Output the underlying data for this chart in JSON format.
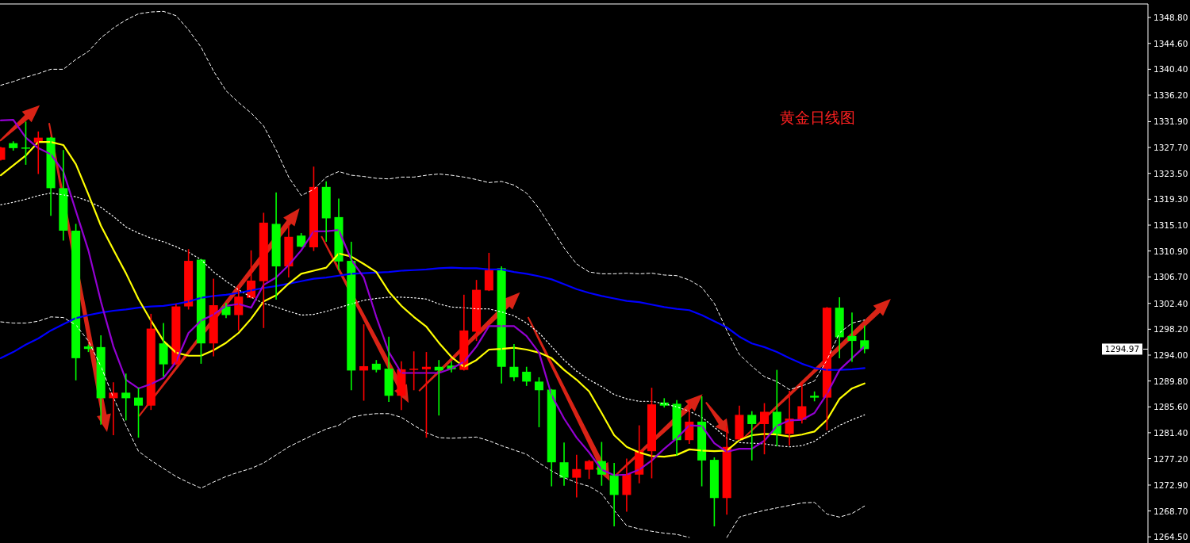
{
  "chart_data": {
    "type": "candlestick",
    "title": "黄金日线图",
    "categories": [
      null,
      null,
      null,
      null,
      null,
      null,
      null,
      null,
      null,
      null,
      null,
      null,
      null,
      null,
      null,
      null,
      null,
      null,
      null,
      null,
      null,
      null,
      null,
      null,
      null,
      null,
      null,
      null,
      null,
      null,
      null,
      null,
      null,
      null,
      null,
      null,
      null,
      null,
      null,
      null,
      null,
      null,
      null,
      null,
      null,
      null,
      null,
      null,
      null,
      null,
      null,
      null,
      null,
      null,
      null,
      null,
      null,
      null,
      null,
      null,
      null,
      null,
      null,
      null,
      null,
      null,
      null,
      null,
      null,
      null
    ],
    "ohlc": [
      [
        1325.7,
        1327.7,
        1325.7,
        1327.7
      ],
      [
        1328.4,
        1328.6,
        1327.3,
        1327.6
      ],
      [
        1327.7,
        1331.8,
        1325.0,
        1327.6
      ],
      [
        1328.5,
        1330.2,
        1323.5,
        1329.3
      ],
      [
        1329.3,
        1329.3,
        1316.7,
        1321.1
      ],
      [
        1321.1,
        1327.2,
        1312.7,
        1314.2
      ],
      [
        1314.2,
        1315.2,
        1290.0,
        1293.5
      ],
      [
        1295.4,
        1295.6,
        1294.6,
        1295.0
      ],
      [
        1295.3,
        1297.1,
        1282.8,
        1287.0
      ],
      [
        1287.0,
        1289.5,
        1281.1,
        1287.9
      ],
      [
        1287.9,
        1290.9,
        1283.5,
        1287.0
      ],
      [
        1287.1,
        1288.6,
        1280.7,
        1285.8
      ],
      [
        1285.8,
        1300.6,
        1285.2,
        1298.3
      ],
      [
        1295.9,
        1299.1,
        1290.6,
        1292.5
      ],
      [
        1292.5,
        1302.2,
        1292.5,
        1301.9
      ],
      [
        1301.9,
        1311.1,
        1301.5,
        1309.3
      ],
      [
        1309.5,
        1309.5,
        1292.7,
        1295.9
      ],
      [
        1295.9,
        1306.3,
        1293.9,
        1302.1
      ],
      [
        1301.9,
        1302.4,
        1300.1,
        1300.5
      ],
      [
        1300.5,
        1305.2,
        1298.1,
        1303.5
      ],
      [
        1303.3,
        1310.9,
        1303.3,
        1306.1
      ],
      [
        1306.0,
        1317.0,
        1298.5,
        1315.5
      ],
      [
        1315.3,
        1320.3,
        1303.1,
        1308.4
      ],
      [
        1308.4,
        1315.0,
        1306.7,
        1313.2
      ],
      [
        1313.4,
        1313.7,
        1311.6,
        1311.6
      ],
      [
        1311.5,
        1324.5,
        1311.0,
        1321.3
      ],
      [
        1321.3,
        1322.1,
        1312.5,
        1316.2
      ],
      [
        1316.4,
        1319.3,
        1307.9,
        1309.2
      ],
      [
        1309.3,
        1312.3,
        1288.4,
        1291.5
      ],
      [
        1291.5,
        1298.9,
        1286.7,
        1292.2
      ],
      [
        1292.6,
        1293.1,
        1291.3,
        1291.6
      ],
      [
        1291.8,
        1296.9,
        1286.5,
        1287.4
      ],
      [
        1287.4,
        1292.9,
        1285.2,
        1291.7
      ],
      [
        1291.6,
        1294.5,
        1288.4,
        1291.8
      ],
      [
        1291.7,
        1294.4,
        1280.7,
        1292.1
      ],
      [
        1292.1,
        1293.1,
        1284.3,
        1291.5
      ],
      [
        1292.3,
        1292.9,
        1291.3,
        1291.7
      ],
      [
        1291.6,
        1303.7,
        1291.6,
        1298.0
      ],
      [
        1297.8,
        1306.1,
        1296.4,
        1304.6
      ],
      [
        1304.5,
        1310.5,
        1304.5,
        1307.8
      ],
      [
        1308.1,
        1308.3,
        1289.5,
        1292.1
      ],
      [
        1292.1,
        1295.7,
        1289.9,
        1290.4
      ],
      [
        1291.3,
        1292.0,
        1289.1,
        1289.7
      ],
      [
        1289.7,
        1290.3,
        1282.4,
        1288.3
      ],
      [
        1288.4,
        1288.4,
        1272.8,
        1276.6
      ],
      [
        1276.6,
        1279.7,
        1272.9,
        1274.1
      ],
      [
        1274.1,
        1277.7,
        1271.0,
        1275.5
      ],
      [
        1275.4,
        1276.9,
        1274.0,
        1276.8
      ],
      [
        1276.8,
        1279.8,
        1272.9,
        1274.6
      ],
      [
        1274.5,
        1276.4,
        1266.3,
        1271.3
      ],
      [
        1271.3,
        1277.1,
        1268.7,
        1274.7
      ],
      [
        1274.6,
        1282.5,
        1273.3,
        1278.5
      ],
      [
        1278.4,
        1288.6,
        1274.1,
        1286.0
      ],
      [
        1286.3,
        1286.9,
        1285.6,
        1285.8
      ],
      [
        1286.1,
        1286.6,
        1277.8,
        1280.2
      ],
      [
        1280.2,
        1286.5,
        1279.7,
        1283.2
      ],
      [
        1283.2,
        1287.2,
        1272.8,
        1276.9
      ],
      [
        1277.0,
        1277.3,
        1266.3,
        1270.8
      ],
      [
        1270.8,
        1282.4,
        1268.2,
        1279.1
      ],
      [
        1280.3,
        1285.7,
        1280.3,
        1284.3
      ],
      [
        1284.3,
        1284.8,
        1277.0,
        1282.8
      ],
      [
        1282.8,
        1286.1,
        1278.0,
        1284.8
      ],
      [
        1284.8,
        1291.5,
        1279.3,
        1281.2
      ],
      [
        1281.2,
        1288.1,
        1279.4,
        1283.7
      ],
      [
        1283.5,
        1289.4,
        1283.0,
        1285.7
      ],
      [
        1287.4,
        1288.0,
        1286.6,
        1287.1
      ],
      [
        1287.1,
        1301.7,
        1281.9,
        1301.7
      ],
      [
        1301.7,
        1303.3,
        1293.6,
        1296.9
      ],
      [
        1297.1,
        1300.8,
        1293.0,
        1296.3
      ],
      [
        1296.4,
        1298.7,
        1294.4,
        1294.97
      ]
    ],
    "colors": [
      "#ff0000",
      "#00ff00",
      "#00ff00",
      "#ff0000",
      "#00ff00",
      "#00ff00",
      "#00ff00",
      "#00ff00",
      "#00ff00",
      "#ff0000",
      "#00ff00",
      "#00ff00",
      "#ff0000",
      "#00ff00",
      "#ff0000",
      "#ff0000",
      "#00ff00",
      "#ff0000",
      "#00ff00",
      "#ff0000",
      "#ff0000",
      "#ff0000",
      "#00ff00",
      "#ff0000",
      "#00ff00",
      "#ff0000",
      "#00ff00",
      "#00ff00",
      "#00ff00",
      "#ff0000",
      "#00ff00",
      "#00ff00",
      "#ff0000",
      "#ff0000",
      "#ff0000",
      "#00ff00",
      "#00ff00",
      "#ff0000",
      "#ff0000",
      "#ff0000",
      "#00ff00",
      "#00ff00",
      "#00ff00",
      "#00ff00",
      "#00ff00",
      "#00ff00",
      "#ff0000",
      "#ff0000",
      "#00ff00",
      "#00ff00",
      "#ff0000",
      "#ff0000",
      "#ff0000",
      "#00ff00",
      "#00ff00",
      "#ff0000",
      "#00ff00",
      "#00ff00",
      "#ff0000",
      "#ff0000",
      "#00ff00",
      "#ff0000",
      "#00ff00",
      "#ff0000",
      "#ff0000",
      "#00ff00",
      "#ff0000",
      "#00ff00",
      "#00ff00",
      "#00ff00"
    ],
    "series": [
      {
        "type": "line",
        "color": "#ffffff",
        "line_style": "dashed",
        "values": [
          1337.8,
          1338.4,
          1339.1,
          1339.7,
          1340.4,
          1340.4,
          1342.0,
          1343.3,
          1345.5,
          1347.1,
          1348.4,
          1349.4,
          1349.7,
          1349.8,
          1349.1,
          1346.8,
          1344.0,
          1340.1,
          1336.9,
          1335.0,
          1333.3,
          1331.2,
          1327.3,
          1322.9,
          1319.9,
          1320.9,
          1322.9,
          1323.8,
          1323.2,
          1323.0,
          1322.7,
          1322.6,
          1322.9,
          1322.9,
          1323.2,
          1323.4,
          1323.2,
          1322.9,
          1322.5,
          1322.0,
          1322.2,
          1321.6,
          1320.3,
          1317.8,
          1314.6,
          1311.4,
          1308.8,
          1307.5,
          1307.2,
          1307.2,
          1307.3,
          1307.2,
          1307.3,
          1307.0,
          1306.9,
          1306.2,
          1305.0,
          1302.4,
          1298.0,
          1294.1,
          1292.2,
          1290.5,
          1289.7,
          1288.4,
          1289.0,
          1289.8,
          1293.2,
          1297.6,
          1299.2,
          1299.7
        ]
      },
      {
        "type": "line",
        "color": "#ffffff",
        "line_style": "dotted",
        "values": [
          1318.4,
          1318.8,
          1319.3,
          1319.9,
          1320.3,
          1320.0,
          1319.7,
          1319.0,
          1318.0,
          1316.5,
          1314.8,
          1313.8,
          1313.0,
          1312.4,
          1311.6,
          1310.7,
          1309.5,
          1307.5,
          1306.0,
          1304.6,
          1303.4,
          1302.4,
          1301.8,
          1301.1,
          1300.5,
          1300.6,
          1301.1,
          1301.7,
          1302.3,
          1302.9,
          1303.2,
          1303.4,
          1303.4,
          1303.3,
          1303.1,
          1302.3,
          1301.8,
          1301.7,
          1301.5,
          1301.5,
          1301.0,
          1300.4,
          1299.2,
          1297.6,
          1295.4,
          1293.2,
          1291.4,
          1290.0,
          1288.9,
          1287.6,
          1286.9,
          1286.5,
          1286.5,
          1286.1,
          1285.6,
          1284.9,
          1283.9,
          1282.3,
          1280.5,
          1279.8,
          1279.7,
          1279.6,
          1279.3,
          1279.1,
          1279.3,
          1280.0,
          1281.4,
          1282.6,
          1283.5,
          1284.3
        ]
      },
      {
        "type": "line",
        "color": "#ffffff",
        "line_style": "dashed",
        "values": [
          1299.4,
          1299.2,
          1299.2,
          1299.5,
          1300.2,
          1300.1,
          1298.9,
          1296.3,
          1292.2,
          1287.1,
          1282.6,
          1278.4,
          1276.9,
          1275.6,
          1274.3,
          1273.3,
          1272.4,
          1273.4,
          1274.3,
          1275.0,
          1275.6,
          1276.5,
          1277.8,
          1279.1,
          1280.1,
          1281.1,
          1282.0,
          1282.6,
          1283.9,
          1284.3,
          1284.5,
          1284.5,
          1283.9,
          1282.6,
          1281.4,
          1280.6,
          1280.5,
          1280.6,
          1280.7,
          1280.1,
          1279.3,
          1278.6,
          1277.9,
          1276.5,
          1275.2,
          1274.1,
          1273.3,
          1272.7,
          1271.5,
          1268.8,
          1266.3,
          1265.8,
          1265.4,
          1265.1,
          1264.9,
          1264.4,
          null,
          null,
          1264.4,
          1267.7,
          1268.3,
          1268.8,
          1269.2,
          1269.6,
          1270.0,
          1270.1,
          1268.2,
          1267.7,
          1268.3,
          1269.5
        ]
      },
      {
        "type": "line",
        "color": "#0000ff",
        "line_style": "solid",
        "values": [
          1293.5,
          1294.5,
          1295.7,
          1296.7,
          1298.0,
          1299.0,
          1300.0,
          1300.5,
          1300.9,
          1301.2,
          1301.4,
          1301.7,
          1301.9,
          1302.0,
          1302.3,
          1302.7,
          1303.3,
          1303.6,
          1303.8,
          1304.1,
          1304.5,
          1304.9,
          1305.2,
          1305.6,
          1306.0,
          1306.4,
          1306.6,
          1306.9,
          1307.2,
          1307.3,
          1307.4,
          1307.5,
          1307.7,
          1307.8,
          1307.9,
          1308.1,
          1308.2,
          1308.1,
          1308.1,
          1307.9,
          1307.9,
          1307.5,
          1307.2,
          1306.8,
          1306.3,
          1305.5,
          1304.7,
          1304.1,
          1303.6,
          1303.2,
          1302.8,
          1302.6,
          1302.2,
          1301.8,
          1301.5,
          1301.3,
          1300.5,
          1299.5,
          1298.5,
          1297.0,
          1295.9,
          1295.3,
          1294.5,
          1293.5,
          1292.6,
          1291.9,
          1291.6,
          1291.6,
          1291.7,
          1291.9
        ]
      },
      {
        "type": "line",
        "color": "#ffff00",
        "line_style": "solid",
        "values": [
          1323.2,
          1324.8,
          1326.4,
          1328.6,
          1328.6,
          1328.1,
          1325.0,
          1320.1,
          1315.0,
          1311.1,
          1307.3,
          1303.1,
          1299.6,
          1296.3,
          1294.4,
          1293.9,
          1293.9,
          1294.8,
          1296.0,
          1297.6,
          1299.9,
          1302.7,
          1303.7,
          1305.6,
          1307.2,
          1307.7,
          1308.2,
          1310.5,
          1310.0,
          1308.8,
          1307.5,
          1304.3,
          1302.0,
          1300.2,
          1298.6,
          1296.0,
          1293.7,
          1292.1,
          1293.2,
          1294.9,
          1295.0,
          1295.2,
          1294.9,
          1294.4,
          1293.5,
          1291.6,
          1290.0,
          1288.1,
          1284.6,
          1281.0,
          1279.1,
          1278.2,
          1277.6,
          1277.5,
          1277.8,
          1278.7,
          1278.5,
          1278.4,
          1278.5,
          1280.2,
          1281.0,
          1281.2,
          1281.1,
          1280.8,
          1281.1,
          1281.6,
          1283.5,
          1286.9,
          1288.6,
          1289.4
        ]
      },
      {
        "type": "line",
        "color": "#9400d3",
        "line_style": "solid",
        "values": [
          1332.1,
          1332.2,
          1329.3,
          1327.6,
          1326.6,
          1323.8,
          1317.4,
          1311.0,
          1302.7,
          1295.4,
          1290.0,
          1288.6,
          1289.3,
          1290.3,
          1292.9,
          1297.6,
          1299.6,
          1300.6,
          1302.0,
          1302.3,
          1301.7,
          1305.4,
          1306.6,
          1308.6,
          1311.0,
          1314.1,
          1314.1,
          1314.3,
          1309.5,
          1306.6,
          1300.2,
          1294.5,
          1291.1,
          1291.1,
          1291.1,
          1291.1,
          1291.8,
          1292.9,
          1295.4,
          1298.7,
          1298.7,
          1298.7,
          1297.1,
          1294.4,
          1287.5,
          1283.7,
          1280.6,
          1278.2,
          1275.4,
          1274.5,
          1274.6,
          1275.4,
          1276.9,
          1278.8,
          1280.5,
          1282.6,
          1282.5,
          1279.7,
          1278.3,
          1278.8,
          1278.8,
          1280.1,
          1282.5,
          1283.4,
          1283.5,
          1284.6,
          1287.7,
          1291.6,
          1293.5,
          1295.4
        ]
      }
    ],
    "ylim": [
      1263.5,
      1351.0
    ],
    "yticks": [
      {
        "value": 1348.8,
        "label": "1348.80"
      },
      {
        "value": 1344.6,
        "label": "1344.60"
      },
      {
        "value": 1340.4,
        "label": "1340.40"
      },
      {
        "value": 1336.2,
        "label": "1336.20"
      },
      {
        "value": 1331.9,
        "label": "1331.90"
      },
      {
        "value": 1327.7,
        "label": "1327.70"
      },
      {
        "value": 1323.5,
        "label": "1323.50"
      },
      {
        "value": 1319.3,
        "label": "1319.30"
      },
      {
        "value": 1315.1,
        "label": "1315.10"
      },
      {
        "value": 1310.9,
        "label": "1310.90"
      },
      {
        "value": 1306.7,
        "label": "1306.70"
      },
      {
        "value": 1302.4,
        "label": "1302.40"
      },
      {
        "value": 1298.2,
        "label": "1298.20"
      },
      {
        "value": 1294.0,
        "label": "1294.00"
      },
      {
        "value": 1289.8,
        "label": "1289.80"
      },
      {
        "value": 1285.6,
        "label": "1285.60"
      },
      {
        "value": 1281.4,
        "label": "1281.40"
      },
      {
        "value": 1277.2,
        "label": "1277.20"
      },
      {
        "value": 1272.9,
        "label": "1272.90"
      },
      {
        "value": 1268.7,
        "label": "1268.70"
      },
      {
        "value": 1264.5,
        "label": "1264.50"
      }
    ],
    "annotations": [
      "1294.97"
    ],
    "tick_labels": "y"
  }
}
